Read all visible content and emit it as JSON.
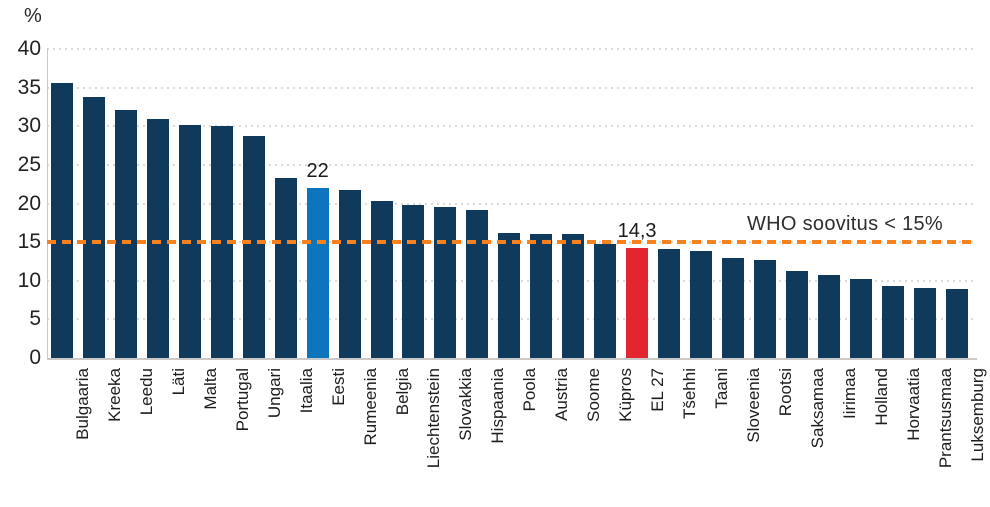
{
  "chart_data": {
    "type": "bar",
    "title": "",
    "ylabel": "%",
    "xlabel": "",
    "ylim": [
      0,
      40
    ],
    "yticks": [
      0,
      5,
      10,
      15,
      20,
      25,
      30,
      35,
      40
    ],
    "grid": "horizontal-dotted",
    "legend": "none",
    "categories": [
      "Bulgaaria",
      "Kreeka",
      "Leedu",
      "Läti",
      "Malta",
      "Portugal",
      "Ungari",
      "Itaalia",
      "Eesti",
      "Rumeenia",
      "Belgia",
      "Liechtenstein",
      "Slovakkia",
      "Hispaania",
      "Poola",
      "Austria",
      "Soome",
      "Küpros",
      "EL 27",
      "Tšehhi",
      "Taani",
      "Sloveenia",
      "Rootsi",
      "Saksamaa",
      "Iirimaa",
      "Holland",
      "Horvaatia",
      "Prantsusmaa",
      "Luksemburg"
    ],
    "values": [
      35.6,
      33.8,
      32.1,
      31.0,
      30.2,
      30.0,
      28.7,
      23.3,
      22,
      21.7,
      20.3,
      19.8,
      19.5,
      19.2,
      16.2,
      16.1,
      16.0,
      14.7,
      14.3,
      14.1,
      13.9,
      12.9,
      12.7,
      11.3,
      10.8,
      10.2,
      9.3,
      9.1,
      8.9
    ],
    "data_labels": [
      {
        "category": "Eesti",
        "text": "22"
      },
      {
        "category": "EL 27",
        "text": "14,3"
      }
    ],
    "highlight_bars": [
      {
        "category": "Eesti",
        "color": "#0E74BC"
      },
      {
        "category": "EL 27",
        "color": "#E32530"
      }
    ],
    "reference_line": {
      "value": 15,
      "label": "WHO soovitus < 15%",
      "style": "dashed",
      "color": "#F6821F"
    }
  },
  "colors": {
    "bar_default": "#103A5C",
    "reference": "#F6821F",
    "gridline": "#DADADA",
    "axis": "#C9C9C9",
    "text": "#1D1D1D"
  }
}
